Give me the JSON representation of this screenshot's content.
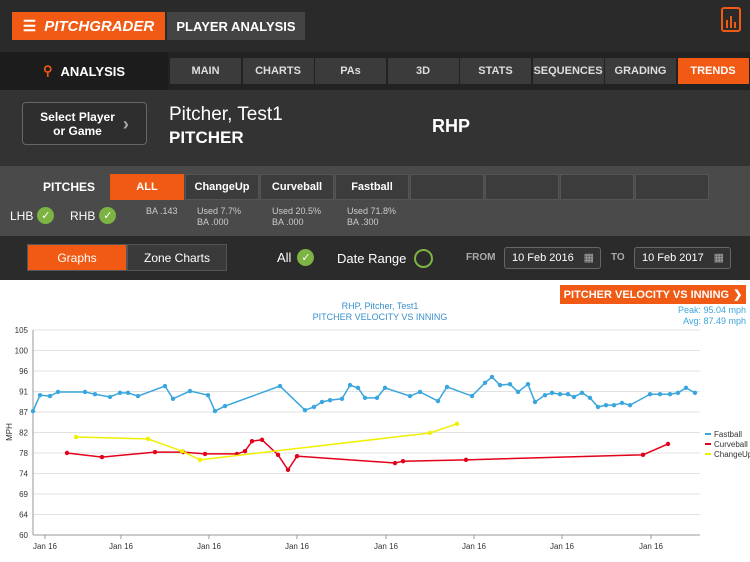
{
  "header": {
    "logo": "PITCHGRADER",
    "title": "PLAYER ANALYSIS"
  },
  "nav": {
    "analysis": "ANALYSIS",
    "tabs": [
      "MAIN",
      "CHARTS",
      "PAs",
      "3D",
      "STATS",
      "SEQUENCES",
      "GRADING",
      "TRENDS"
    ],
    "active": 7
  },
  "player": {
    "select": [
      "Select Player",
      "or Game"
    ],
    "name": "Pitcher, Test1",
    "role": "PITCHER",
    "hand": "RHP"
  },
  "pitches": {
    "label": "PITCHES",
    "lhb": "LHB",
    "rhb": "RHB",
    "active": 0,
    "types": [
      {
        "name": "ALL",
        "stats": [
          "BA .143"
        ]
      },
      {
        "name": "ChangeUp",
        "stats": [
          "Used 7.7%",
          "BA .000"
        ]
      },
      {
        "name": "Curveball",
        "stats": [
          "Used 20.5%",
          "BA .000"
        ]
      },
      {
        "name": "Fastball",
        "stats": [
          "Used 71.8%",
          "BA .300"
        ]
      }
    ]
  },
  "filters": {
    "views": [
      "Graphs",
      "Zone Charts"
    ],
    "active": 0,
    "all": "All",
    "date_range": "Date Range",
    "from_label": "FROM",
    "from": "10 Feb 2016",
    "to_label": "TO",
    "to": "10 Feb 2017"
  },
  "chart_button": "PITCHER VELOCITY VS INNING",
  "stats": [
    "Peak: 95.04 mph",
    "Avg: 87.49 mph"
  ],
  "chart": {
    "type": "line",
    "title": "RHP, Pitcher, Test1",
    "subtitle": "PITCHER VELOCITY VS INNING",
    "ylabel": "MPH",
    "grid": true,
    "xlim": [
      0,
      667
    ],
    "xticks": [
      {
        "value": 12,
        "label": "Jan 16"
      },
      {
        "value": 88,
        "label": "Jan 16"
      },
      {
        "value": 176,
        "label": "Jan 16"
      },
      {
        "value": 264,
        "label": "Jan 16"
      },
      {
        "value": 353,
        "label": "Jan 16"
      },
      {
        "value": 441,
        "label": "Jan 16"
      },
      {
        "value": 529,
        "label": "Jan 16"
      },
      {
        "value": 618,
        "label": "Jan 16"
      }
    ],
    "ylim": [
      60,
      105
    ],
    "yticks": [
      60,
      {
        "value": 64.5,
        "label": "64"
      },
      69,
      {
        "value": 73.5,
        "label": "74"
      },
      78,
      {
        "value": 82.5,
        "label": "82"
      },
      87,
      {
        "value": 91.5,
        "label": "91"
      },
      96,
      {
        "value": 100.5,
        "label": "100"
      },
      105
    ],
    "series": [
      {
        "name": "Fastball",
        "color": "#3aa6dd",
        "x": [
          0,
          7,
          17,
          25,
          52,
          62,
          77,
          87,
          95,
          105,
          132,
          140,
          157,
          175,
          182,
          192,
          247,
          272,
          281,
          289,
          297,
          309,
          317,
          325,
          332,
          344,
          352,
          377,
          387,
          405,
          414,
          439,
          452,
          459,
          467,
          477,
          485,
          495,
          502,
          512,
          519,
          527,
          535,
          541,
          549,
          557,
          565,
          573,
          581,
          589,
          597,
          617,
          627,
          637,
          645,
          653,
          662
        ],
        "values": [
          87.2,
          90.7,
          90.5,
          91.4,
          91.4,
          90.9,
          90.3,
          91.2,
          91.2,
          90.5,
          92.7,
          89.9,
          91.6,
          90.7,
          87.2,
          88.3,
          92.7,
          87.4,
          88.1,
          89.2,
          89.6,
          89.9,
          92.9,
          92.3,
          90.1,
          90.1,
          92.3,
          90.5,
          91.4,
          89.4,
          92.5,
          90.5,
          93.4,
          94.7,
          92.9,
          93.1,
          91.4,
          93.1,
          89.2,
          90.7,
          91.2,
          90.9,
          90.9,
          90.3,
          91.2,
          90.1,
          88.1,
          88.5,
          88.5,
          89.0,
          88.5,
          90.9,
          90.9,
          90.9,
          91.2,
          92.3,
          91.2
        ]
      },
      {
        "name": "Curveball",
        "color": "#e3001b",
        "x": [
          34,
          69,
          122,
          150,
          172,
          204,
          212,
          219,
          229,
          245,
          255,
          264,
          362,
          370,
          433,
          610,
          635
        ],
        "values": [
          78.0,
          77.1,
          78.2,
          78.2,
          77.8,
          77.8,
          78.4,
          80.6,
          80.9,
          77.6,
          74.3,
          77.3,
          75.8,
          76.2,
          76.5,
          77.6,
          80.0
        ]
      },
      {
        "name": "ChangeUp",
        "color": "#f0f000",
        "x": [
          43,
          115,
          149,
          167,
          397,
          424
        ],
        "values": [
          81.5,
          81.1,
          78.4,
          76.5,
          82.4,
          84.4
        ]
      }
    ]
  }
}
